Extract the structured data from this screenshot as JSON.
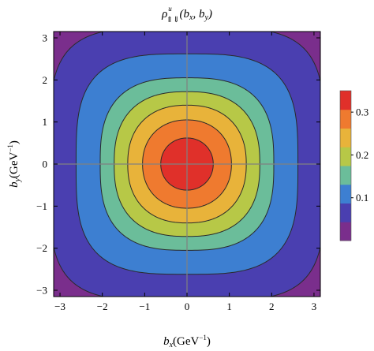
{
  "chart_data": {
    "type": "heatmap",
    "subtype": "filled-contour",
    "title": {
      "base": "ρ",
      "superscript": "u",
      "subscript": "⇑⇓",
      "args": [
        "(",
        "b",
        "x",
        ", ",
        "b",
        "y",
        ")"
      ]
    },
    "xlabel": {
      "var": "b",
      "sub": "x",
      "unit": "(GeV",
      "exp": "−1",
      "close": ")"
    },
    "ylabel": {
      "var": "b",
      "sub": "y",
      "unit": "(GeV",
      "exp": "−1",
      "close": ")"
    },
    "xlim": [
      -3.15,
      3.15
    ],
    "ylim": [
      -3.15,
      3.15
    ],
    "x_ticks": [
      -3,
      -2,
      -1,
      0,
      1,
      2,
      3
    ],
    "y_ticks": [
      -3,
      -2,
      -1,
      0,
      1,
      2,
      3
    ],
    "x_tick_labels": [
      "−3",
      "−2",
      "−1",
      "0",
      "1",
      "2",
      "3"
    ],
    "y_tick_labels": [
      "−3",
      "−2",
      "−1",
      "0",
      "1",
      "2",
      "3"
    ],
    "contour_levels": [
      0.02,
      0.05,
      0.1,
      0.15,
      0.2,
      0.25,
      0.3
    ],
    "level_colors": [
      "#7a2e8c",
      "#4a3fb0",
      "#3d7fd1",
      "#6bbd9a",
      "#b7c847",
      "#e8b33a",
      "#ef7a2f",
      "#e0302a"
    ],
    "contour_radii": [
      {
        "level": 0.02,
        "r": 3.25,
        "shape_exponent": 4.2
      },
      {
        "level": 0.05,
        "r": 2.62,
        "shape_exponent": 3.3
      },
      {
        "level": 0.1,
        "r": 2.05,
        "shape_exponent": 2.8
      },
      {
        "level": 0.15,
        "r": 1.72,
        "shape_exponent": 2.5
      },
      {
        "level": 0.2,
        "r": 1.4,
        "shape_exponent": 2.3
      },
      {
        "level": 0.25,
        "r": 1.05,
        "shape_exponent": 2.15
      },
      {
        "level": 0.3,
        "r": 0.62,
        "shape_exponent": 2.05
      }
    ],
    "center": [
      0,
      0
    ],
    "reference_lines": {
      "x": 0,
      "y": 0
    },
    "legend": {
      "placement": "right",
      "tick_values": [
        0.1,
        0.2,
        0.3
      ],
      "tick_labels": [
        "0.1",
        "0.2",
        "0.3"
      ],
      "range": [
        0,
        0.35
      ]
    }
  }
}
